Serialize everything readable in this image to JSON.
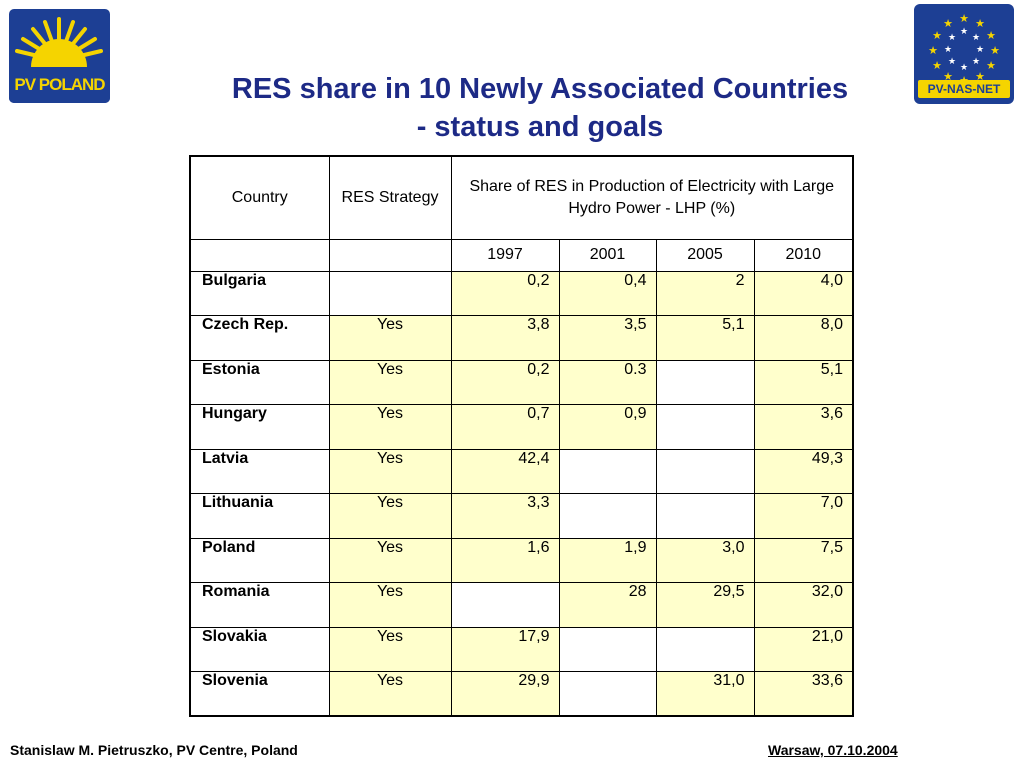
{
  "logos": {
    "left_text": "PV POLAND",
    "right_text": "PV-NAS-NET"
  },
  "title_line1": "RES share in 10 Newly Associated Countries",
  "title_line2": "- status and goals",
  "table": {
    "headers": {
      "country": "Country",
      "strategy": "RES Strategy",
      "share": "Share of RES in Production of Electricity with Large Hydro Power - LHP (%)"
    },
    "years": [
      "1997",
      "2001",
      "2005",
      "2010"
    ],
    "rows": [
      {
        "country": "Bulgaria",
        "strategy": "",
        "v": [
          "0,2",
          "0,4",
          "2",
          "4,0"
        ]
      },
      {
        "country": "Czech Rep.",
        "strategy": "Yes",
        "v": [
          "3,8",
          "3,5",
          "5,1",
          "8,0"
        ]
      },
      {
        "country": "Estonia",
        "strategy": "Yes",
        "v": [
          "0,2",
          "0.3",
          "",
          "5,1"
        ]
      },
      {
        "country": "Hungary",
        "strategy": "Yes",
        "v": [
          "0,7",
          "0,9",
          "",
          "3,6"
        ]
      },
      {
        "country": "Latvia",
        "strategy": "Yes",
        "v": [
          "42,4",
          "",
          "",
          "49,3"
        ]
      },
      {
        "country": "Lithuania",
        "strategy": "Yes",
        "v": [
          "3,3",
          "",
          "",
          "7,0"
        ]
      },
      {
        "country": "Poland",
        "strategy": "Yes",
        "v": [
          "1,6",
          "1,9",
          "3,0",
          "7,5"
        ]
      },
      {
        "country": "Romania",
        "strategy": "Yes",
        "v": [
          "",
          "28",
          "29,5",
          "32,0"
        ]
      },
      {
        "country": "Slovakia",
        "strategy": "Yes",
        "v": [
          "17,9",
          "",
          "",
          "21,0"
        ]
      },
      {
        "country": "Slovenia",
        "strategy": "Yes",
        "v": [
          "29,9",
          "",
          "31,0",
          "33,6"
        ]
      }
    ]
  },
  "footer": {
    "left": "Stanislaw M. Pietruszko, PV Centre, Poland",
    "right": "Warsaw,  07.10.2004"
  },
  "colors": {
    "title": "#1d2a86",
    "cell_fill": "#ffffcc",
    "logo_blue": "#1d3f94",
    "logo_yellow": "#f5d400"
  }
}
